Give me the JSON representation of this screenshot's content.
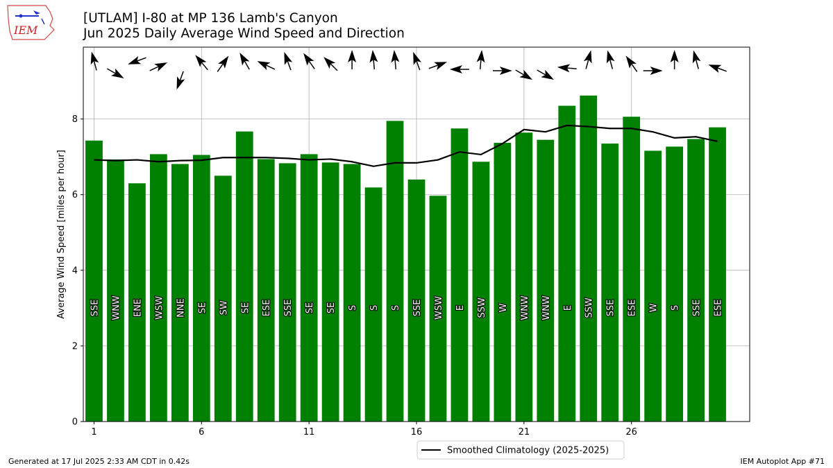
{
  "header": {
    "title_line1": "[UTLAM] I-80 at MP 136 Lamb's Canyon",
    "title_line2": "Jun 2025 Daily Average Wind Speed and Direction"
  },
  "logo": {
    "text": "IEM"
  },
  "footer": {
    "left": "Generated at 17 Jul 2025 2:33 AM CDT in 0.42s",
    "right": "IEM Autoplot App #71"
  },
  "colors": {
    "bar": "#008000",
    "line": "#000000",
    "grid": "#b0b0b0"
  },
  "chart_data": {
    "type": "bar",
    "title": "[UTLAM] I-80 at MP 136 Lamb's Canyon",
    "subtitle": "Jun 2025 Daily Average Wind Speed and Direction",
    "ylabel": "Average Wind Speed [miles per hour]",
    "xlabel": "",
    "xlim": [
      0.5,
      31.5
    ],
    "ylim": [
      0,
      9.9
    ],
    "xticks": [
      1,
      6,
      11,
      16,
      21,
      26
    ],
    "yticks": [
      0,
      2,
      4,
      6,
      8
    ],
    "grid": true,
    "days": [
      1,
      2,
      3,
      4,
      5,
      6,
      7,
      8,
      9,
      10,
      11,
      12,
      13,
      14,
      15,
      16,
      17,
      18,
      19,
      20,
      21,
      22,
      23,
      24,
      25,
      26,
      27,
      28,
      29,
      30
    ],
    "values": [
      7.43,
      6.93,
      6.3,
      7.07,
      6.81,
      7.05,
      6.5,
      7.67,
      6.94,
      6.83,
      7.07,
      6.85,
      6.81,
      6.19,
      7.95,
      6.4,
      5.97,
      7.75,
      6.87,
      7.37,
      7.64,
      7.45,
      8.35,
      8.62,
      7.35,
      8.06,
      7.16,
      7.27,
      7.47,
      7.78
    ],
    "direction_labels": [
      "SSE",
      "WNW",
      "ENE",
      "WSW",
      "NNE",
      "SE",
      "SW",
      "SE",
      "ESE",
      "SSE",
      "SE",
      "SE",
      "S",
      "S",
      "S",
      "SSE",
      "WSW",
      "E",
      "SSW",
      "W",
      "WNW",
      "WNW",
      "E",
      "SSW",
      "SSE",
      "ESE",
      "W",
      "S",
      "SSE",
      "ESE"
    ],
    "direction_degrees": [
      165,
      300,
      70,
      245,
      20,
      140,
      215,
      150,
      115,
      160,
      145,
      135,
      180,
      175,
      175,
      160,
      250,
      90,
      185,
      270,
      300,
      300,
      95,
      195,
      165,
      145,
      270,
      180,
      165,
      110
    ],
    "series": [
      {
        "name": "Smoothed Climatology (2025-2025)",
        "x": [
          1,
          2,
          3,
          4,
          5,
          6,
          7,
          8,
          9,
          10,
          11,
          12,
          13,
          14,
          15,
          16,
          17,
          18,
          19,
          20,
          21,
          22,
          23,
          24,
          25,
          26,
          27,
          28,
          29,
          30
        ],
        "values": [
          6.92,
          6.9,
          6.92,
          6.87,
          6.9,
          6.91,
          6.98,
          6.98,
          6.98,
          6.96,
          6.92,
          6.94,
          6.87,
          6.75,
          6.84,
          6.84,
          6.92,
          7.13,
          7.06,
          7.35,
          7.72,
          7.66,
          7.83,
          7.8,
          7.75,
          7.75,
          7.66,
          7.5,
          7.53,
          7.41
        ]
      }
    ],
    "legend_position": "bottom-center"
  }
}
